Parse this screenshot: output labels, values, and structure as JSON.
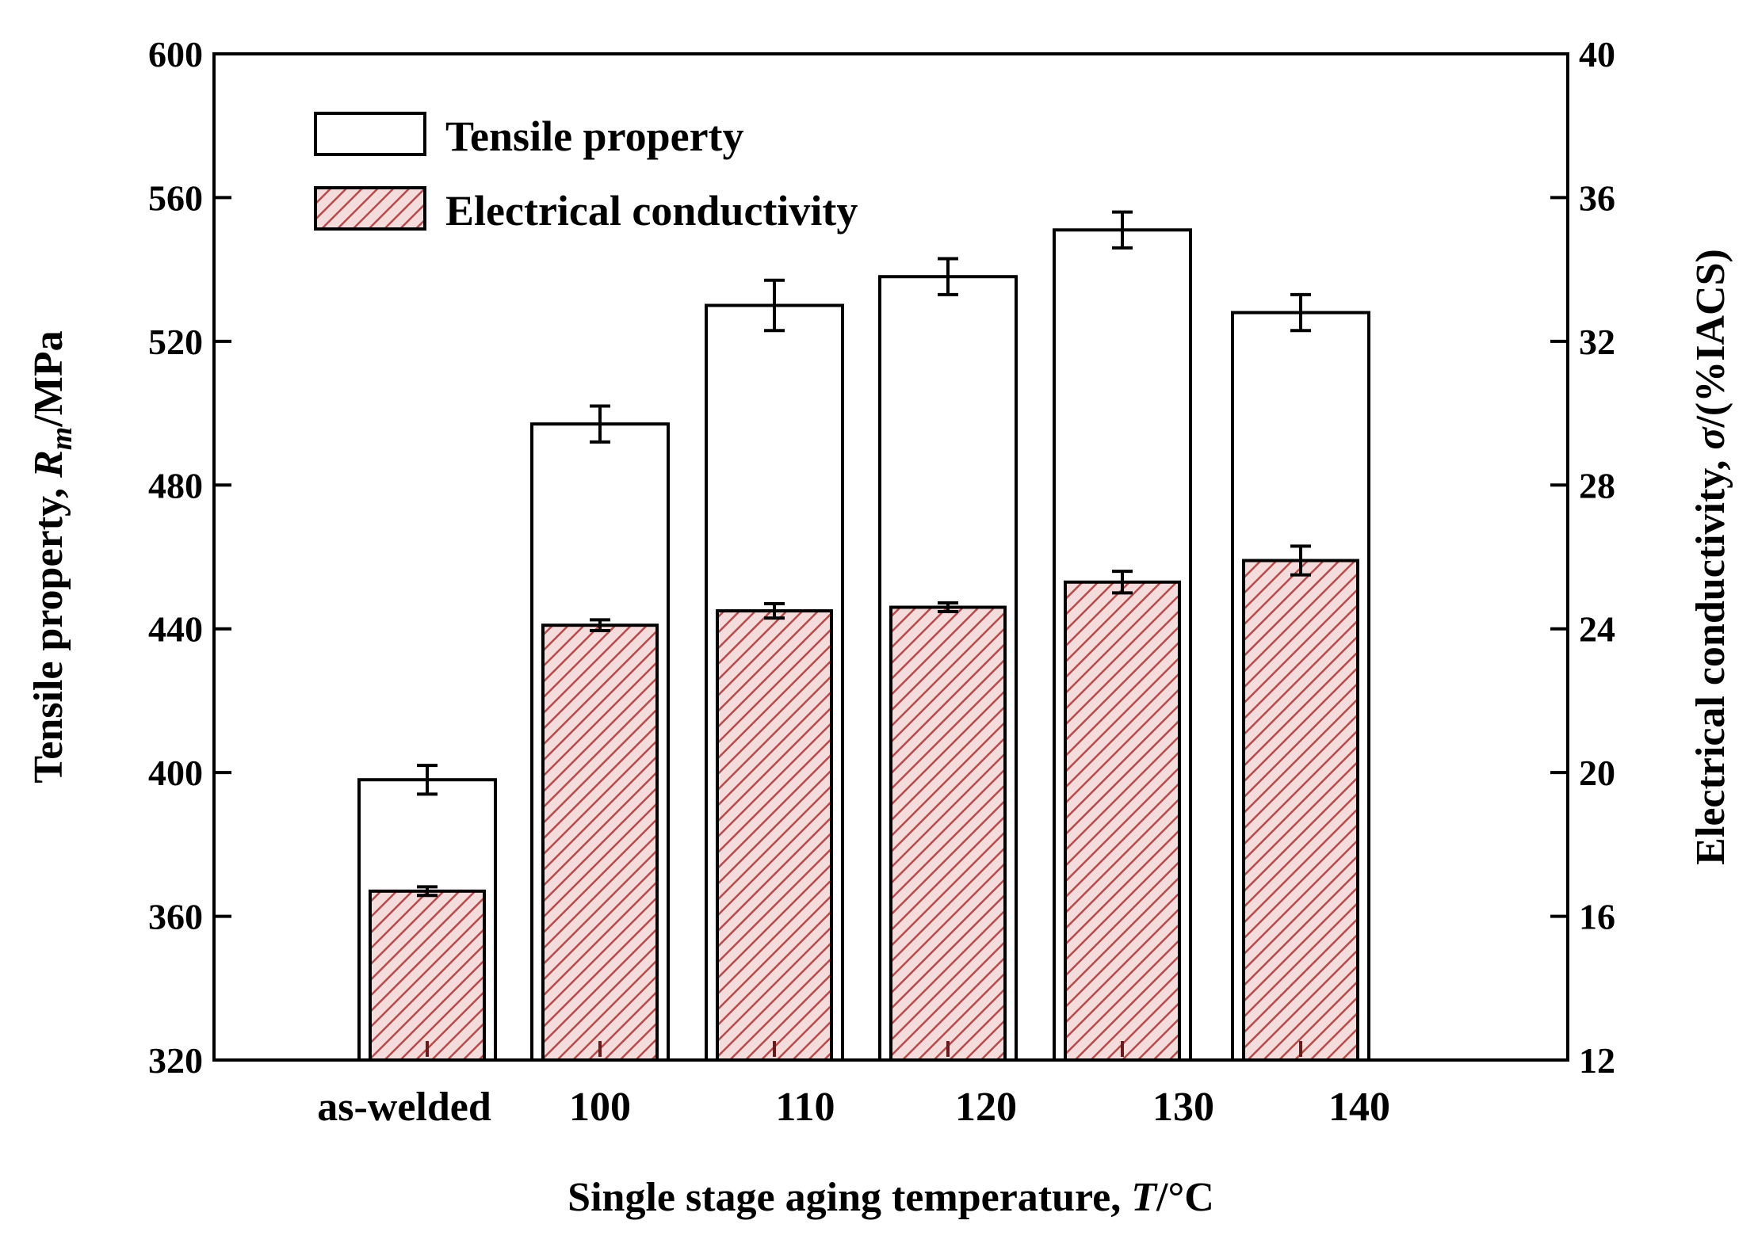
{
  "chart_data": {
    "type": "bar",
    "categories": [
      "as-welded",
      "100",
      "110",
      "120",
      "130",
      "140"
    ],
    "series": [
      {
        "name": "Tensile property",
        "axis": "left",
        "values": [
          398,
          497,
          530,
          538,
          551,
          528
        ],
        "errors": [
          4,
          5,
          7,
          5,
          5,
          5
        ],
        "fill": "#ffffff"
      },
      {
        "name": "Electrical conductivity",
        "axis": "right",
        "values": [
          16.7,
          24.1,
          24.5,
          24.6,
          25.3,
          25.9
        ],
        "errors": [
          0.1,
          0.15,
          0.2,
          0.05,
          0.3,
          0.4
        ],
        "fill": "#f2d8d8",
        "hatch": "#b84a4a"
      }
    ],
    "legend": [
      "Tensile property",
      "Electrical conductivity"
    ],
    "legend_position": "top-left",
    "left_axis": {
      "label_main": "Tensile property, ",
      "label_italic": "R",
      "label_sub": "m",
      "label_unit": "/MPa",
      "ylim": [
        320,
        600
      ],
      "ticks": [
        "320",
        "360",
        "400",
        "440",
        "480",
        "520",
        "560",
        "600"
      ]
    },
    "right_axis": {
      "label_main": "Electrical conductivity, ",
      "label_italic": "σ",
      "label_unit": "/(%IACS)",
      "ylim": [
        12,
        40
      ],
      "ticks": [
        "12",
        "16",
        "20",
        "24",
        "28",
        "32",
        "36",
        "40"
      ]
    },
    "x_axis": {
      "label_main": "Single stage aging temperature, ",
      "label_italic": "T",
      "label_unit": "/°C"
    }
  }
}
